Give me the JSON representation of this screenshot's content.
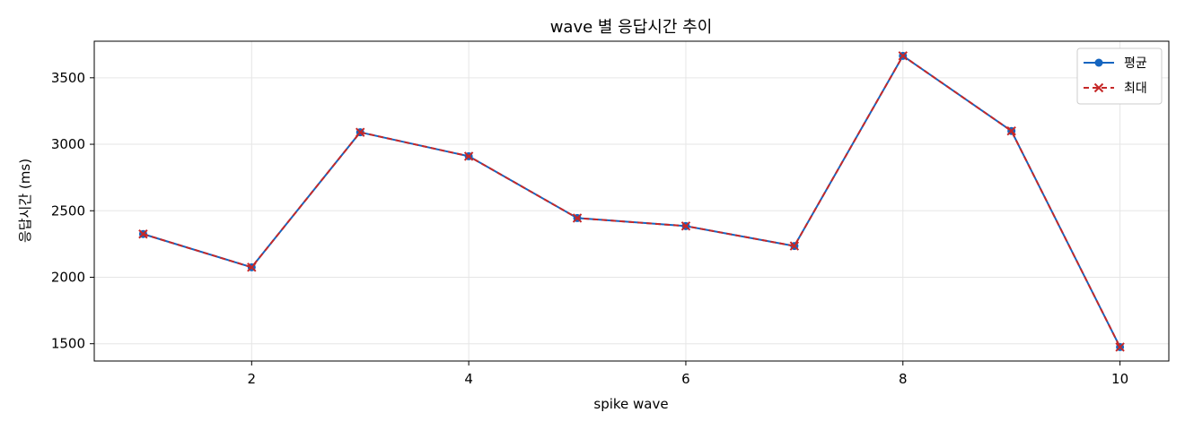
{
  "chart_data": {
    "type": "line",
    "title": "wave 별 응답시간 추이",
    "xlabel": "spike wave",
    "ylabel": "응답시간 (ms)",
    "x": [
      1,
      2,
      3,
      4,
      5,
      6,
      7,
      8,
      9,
      10
    ],
    "xlim": [
      0.55,
      10.45
    ],
    "ylim": [
      1370,
      3775
    ],
    "xticks": [
      2,
      4,
      6,
      8,
      10
    ],
    "yticks": [
      1500,
      2000,
      2500,
      3000,
      3500
    ],
    "grid": true,
    "legend_position": "top-right",
    "series": [
      {
        "name": "평균",
        "color": "#1565c0",
        "marker": "circle",
        "linestyle": "solid",
        "values": [
          2325,
          2075,
          3090,
          2910,
          2445,
          2385,
          2235,
          3665,
          3100,
          1475
        ]
      },
      {
        "name": "최대",
        "color": "#c62828",
        "marker": "x",
        "linestyle": "dashed",
        "values": [
          2325,
          2075,
          3090,
          2910,
          2445,
          2385,
          2235,
          3665,
          3100,
          1475
        ]
      }
    ]
  }
}
